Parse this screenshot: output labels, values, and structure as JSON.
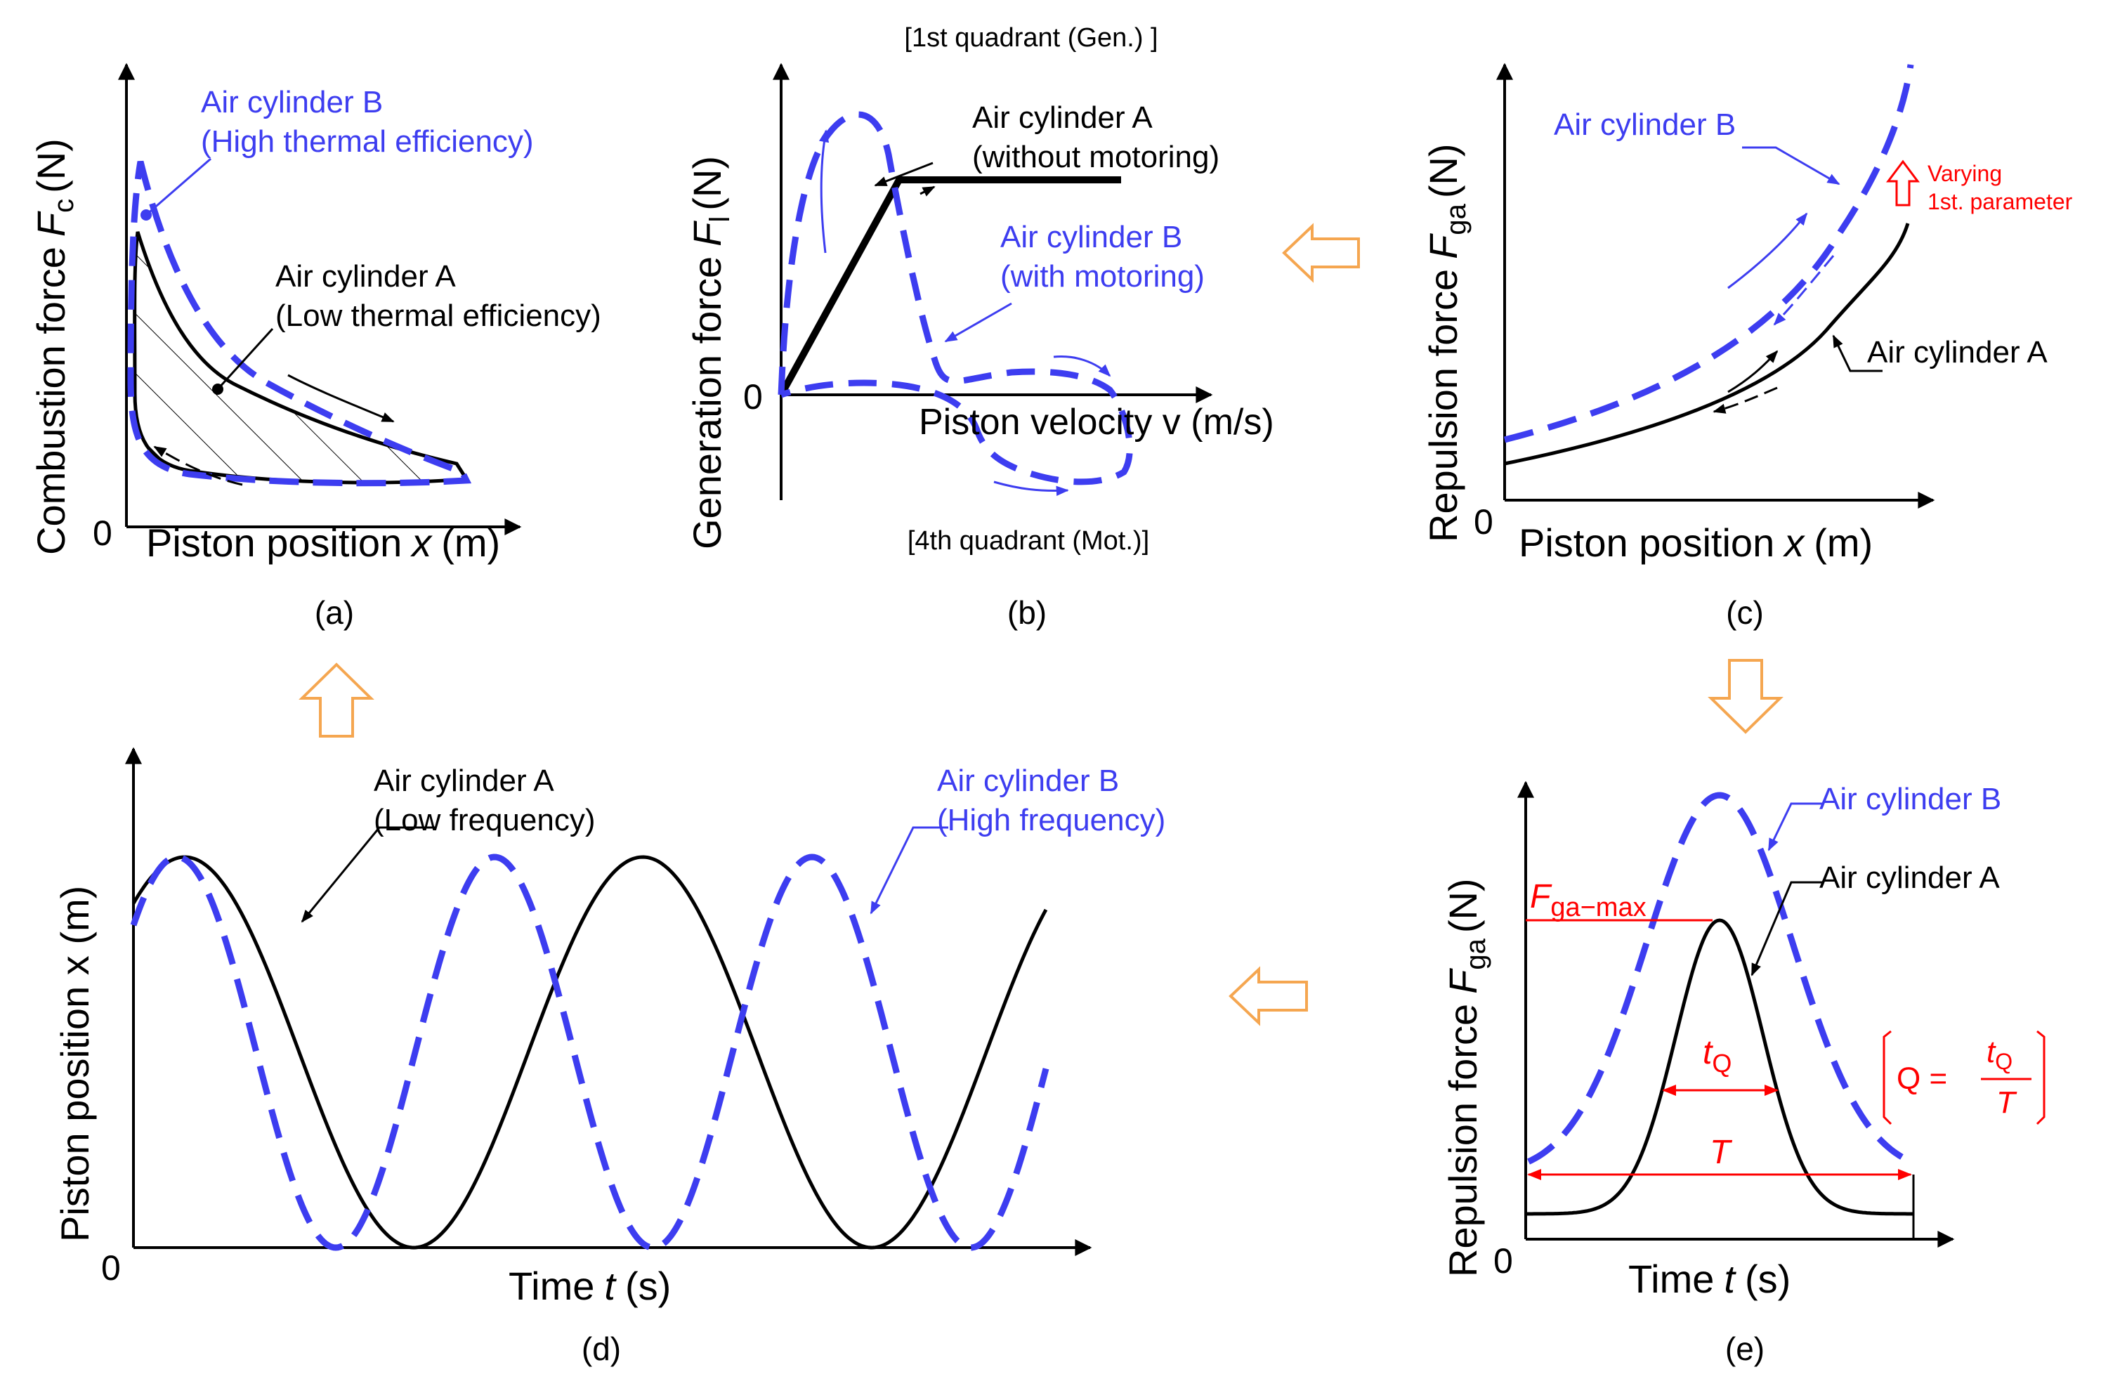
{
  "colors": {
    "black": "#000000",
    "blue": "#3d3df0",
    "red": "#ff0000",
    "orange": "#f5a650"
  },
  "panel_a": {
    "caption": "(a)",
    "ylabel": "Combustion force",
    "ylabel_symbol": "F",
    "ylabel_sub": "c",
    "ylabel_unit": "(N)",
    "xlabel_text": "Piston position",
    "xlabel_symbol": "x",
    "xlabel_unit": "(m)",
    "origin": "0",
    "label_b_line1": "Air cylinder B",
    "label_b_line2": "(High thermal efficiency)",
    "label_a_line1": "Air cylinder A",
    "label_a_line2": "(Low thermal efficiency)"
  },
  "panel_b": {
    "caption": "(b)",
    "top_note": "[1st quadrant (Gen.) ]",
    "bottom_note": "[4th quadrant (Mot.)]",
    "ylabel": "Generation force",
    "ylabel_symbol": "F",
    "ylabel_sub": "l",
    "ylabel_unit": "(N)",
    "xlabel": "Piston velocity v (m/s)",
    "origin": "0",
    "label_a_line1": "Air cylinder A",
    "label_a_line2": "(without motoring)",
    "label_b_line1": "Air cylinder B",
    "label_b_line2": "(with motoring)"
  },
  "panel_c": {
    "caption": "(c)",
    "ylabel": "Repulsion force",
    "ylabel_symbol": "F",
    "ylabel_sub": "ga",
    "ylabel_unit": "(N)",
    "xlabel_text": "Piston position",
    "xlabel_symbol": "x",
    "xlabel_unit": "(m)",
    "origin": "0",
    "label_b": "Air cylinder B",
    "label_a": "Air cylinder A",
    "varying_line1": "Varying",
    "varying_line2": "1st. parameter"
  },
  "panel_d": {
    "caption": "(d)",
    "ylabel": "Piston position x (m)",
    "xlabel_text": "Time",
    "xlabel_symbol": "t",
    "xlabel_unit": "(s)",
    "origin": "0",
    "label_a_line1": "Air cylinder A",
    "label_a_line2": "(Low frequency)",
    "label_b_line1": "Air cylinder B",
    "label_b_line2": "(High frequency)"
  },
  "panel_e": {
    "caption": "(e)",
    "ylabel": "Repulsion force",
    "ylabel_symbol": "F",
    "ylabel_sub": "ga",
    "ylabel_unit": "(N)",
    "xlabel_text": "Time",
    "xlabel_symbol": "t",
    "xlabel_unit": "(s)",
    "origin": "0",
    "label_b": "Air cylinder B",
    "label_a": "Air cylinder A",
    "fmax_symbol": "F",
    "fmax_sub": "ga−max",
    "tq_symbol": "t",
    "tq_sub": "Q",
    "T_symbol": "T",
    "eq_Q": "Q =",
    "eq_num_symbol": "t",
    "eq_num_sub": "Q",
    "eq_den": "T"
  }
}
